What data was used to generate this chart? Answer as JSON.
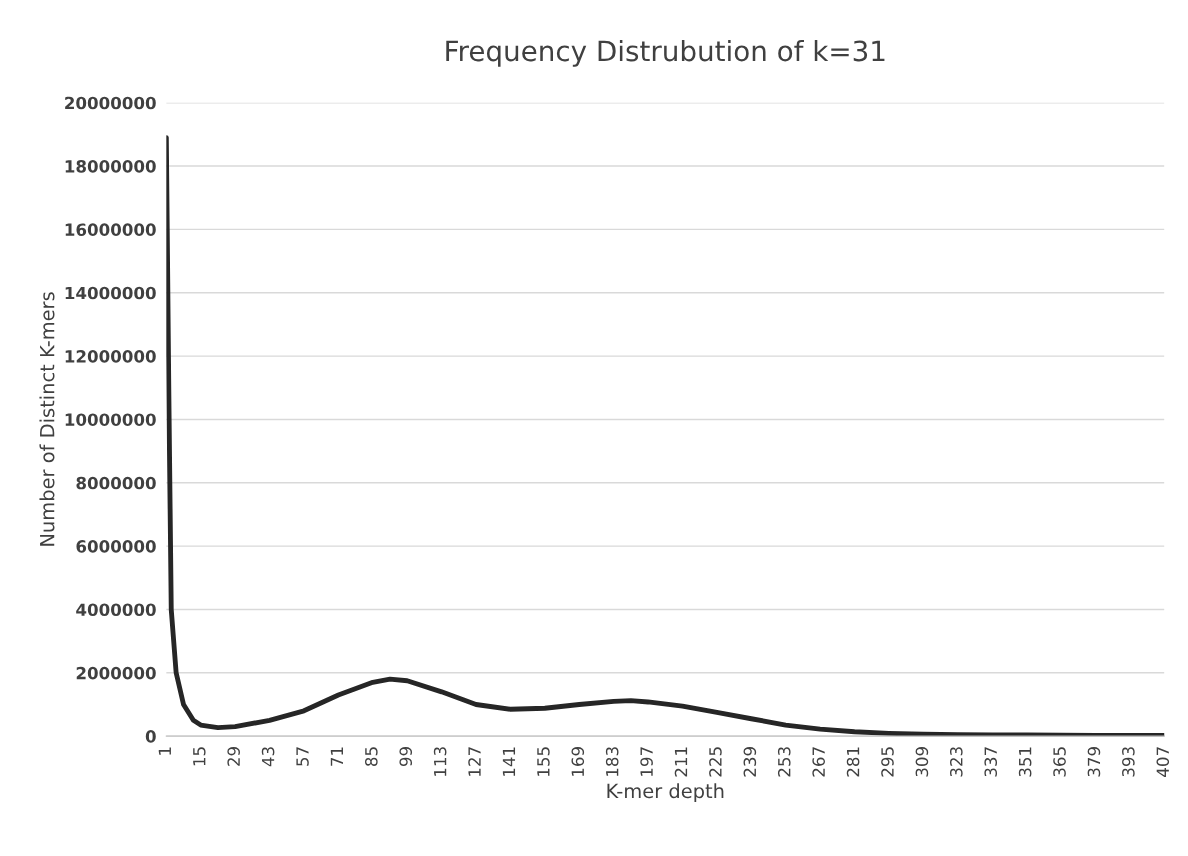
{
  "chart_data": {
    "type": "line",
    "title": "Frequency Distrubution of k=31",
    "xlabel": "K-mer depth",
    "ylabel": "Number of Distinct K-mers",
    "x": [
      1,
      2,
      3,
      5,
      8,
      12,
      15,
      22,
      29,
      43,
      57,
      71,
      85,
      92,
      99,
      113,
      127,
      141,
      155,
      169,
      183,
      190,
      197,
      211,
      225,
      239,
      253,
      267,
      281,
      295,
      309,
      323,
      337,
      351,
      365,
      379,
      393,
      407
    ],
    "series": [
      {
        "color": "#262626",
        "values": [
          18900000,
          11000000,
          4000000,
          2000000,
          1000000,
          500000,
          350000,
          270000,
          300000,
          500000,
          800000,
          1300000,
          1700000,
          1800000,
          1750000,
          1400000,
          1000000,
          850000,
          880000,
          1000000,
          1100000,
          1120000,
          1080000,
          950000,
          750000,
          550000,
          350000,
          220000,
          140000,
          90000,
          60000,
          50000,
          40000,
          40000,
          30000,
          20000,
          20000,
          20000
        ]
      }
    ],
    "xlim": [
      1,
      407
    ],
    "xticks": [
      1,
      15,
      29,
      43,
      57,
      71,
      85,
      99,
      113,
      127,
      141,
      155,
      169,
      183,
      197,
      211,
      225,
      239,
      253,
      267,
      281,
      295,
      309,
      323,
      337,
      351,
      365,
      379,
      393,
      407
    ],
    "ylim": [
      0,
      20000000
    ],
    "yticks": [
      0,
      2000000,
      4000000,
      6000000,
      8000000,
      10000000,
      12000000,
      14000000,
      16000000,
      18000000,
      20000000
    ],
    "grid": "y",
    "marker": "none",
    "line_style": "solid"
  }
}
